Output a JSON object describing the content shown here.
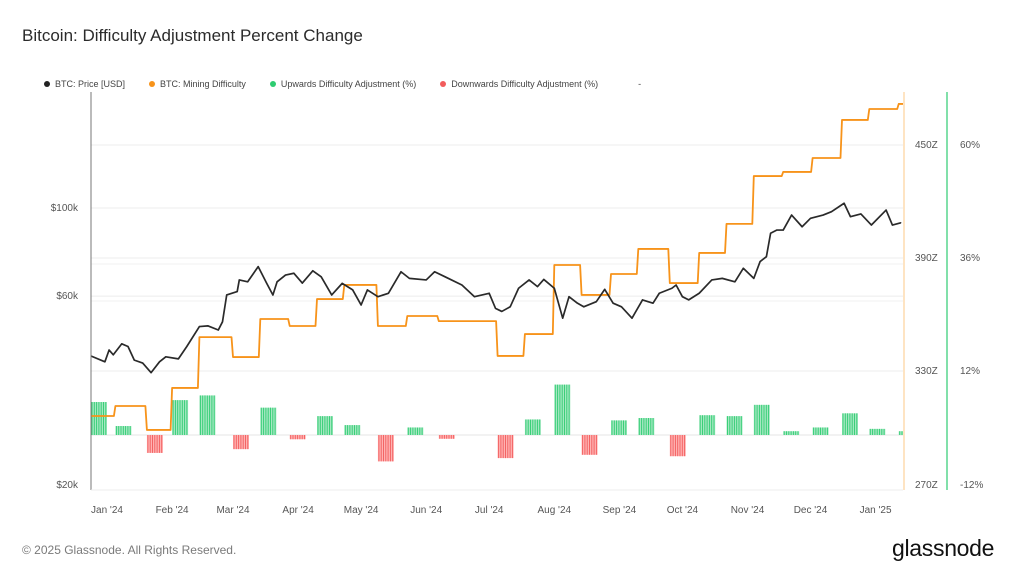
{
  "title": "Bitcoin: Difficulty Adjustment Percent Change",
  "footer": "© 2025 Glassnode. All Rights Reserved.",
  "logo": "glassnode",
  "legend": [
    {
      "label": "BTC: Price [USD]",
      "color": "#222222"
    },
    {
      "label": "BTC: Mining Difficulty",
      "color": "#f7931a"
    },
    {
      "label": "Upwards Difficulty Adjustment (%)",
      "color": "#2ecc71"
    },
    {
      "label": "Downwards Difficulty Adjustment (%)",
      "color": "#f25c5c"
    },
    {
      "label": "-",
      "color": ""
    }
  ],
  "chart_data": {
    "type": "line+bar",
    "title": "Bitcoin: Difficulty Adjustment Percent Change",
    "x_ticks": [
      "Jan '24",
      "Feb '24",
      "Mar '24",
      "Apr '24",
      "May '24",
      "Jun '24",
      "Jul '24",
      "Aug '24",
      "Sep '24",
      "Oct '24",
      "Nov '24",
      "Dec '24",
      "Jan '25"
    ],
    "price_axis": {
      "scale": "log",
      "ticks": [
        {
          "label": "$100k",
          "value": 100000
        },
        {
          "label": "$60k",
          "value": 60000
        },
        {
          "label": "$20k",
          "value": 20000
        }
      ]
    },
    "difficulty_axis": {
      "ticks": [
        {
          "label": "450Z",
          "value": 450
        },
        {
          "label": "390Z",
          "value": 390
        },
        {
          "label": "330Z",
          "value": 330
        },
        {
          "label": "270Z",
          "value": 270
        }
      ]
    },
    "percent_axis": {
      "ticks": [
        {
          "label": "60%",
          "value": 60
        },
        {
          "label": "36%",
          "value": 36
        },
        {
          "label": "12%",
          "value": 12
        },
        {
          "label": "-12%",
          "value": -12
        }
      ]
    },
    "grid": true,
    "legend_position": "top-left",
    "series": [
      {
        "name": "BTC: Price [USD]",
        "color": "#222222",
        "points": [
          [
            "2023-12-24",
            42400
          ],
          [
            "2023-12-31",
            41000
          ],
          [
            "2024-01-02",
            43900
          ],
          [
            "2024-01-04",
            42700
          ],
          [
            "2024-01-08",
            45500
          ],
          [
            "2024-01-11",
            44800
          ],
          [
            "2024-01-14",
            41400
          ],
          [
            "2024-01-18",
            40700
          ],
          [
            "2024-01-22",
            38500
          ],
          [
            "2024-01-26",
            41000
          ],
          [
            "2024-01-29",
            42200
          ],
          [
            "2024-02-04",
            41700
          ],
          [
            "2024-02-08",
            44800
          ],
          [
            "2024-02-14",
            50300
          ],
          [
            "2024-02-18",
            50500
          ],
          [
            "2024-02-23",
            49300
          ],
          [
            "2024-02-25",
            51700
          ],
          [
            "2024-02-27",
            60400
          ],
          [
            "2024-03-03",
            61600
          ],
          [
            "2024-03-04",
            65900
          ],
          [
            "2024-03-08",
            65200
          ],
          [
            "2024-03-13",
            71200
          ],
          [
            "2024-03-17",
            64700
          ],
          [
            "2024-03-20",
            60400
          ],
          [
            "2024-03-22",
            65200
          ],
          [
            "2024-03-26",
            67800
          ],
          [
            "2024-03-30",
            68500
          ],
          [
            "2024-04-03",
            64700
          ],
          [
            "2024-04-08",
            69500
          ],
          [
            "2024-04-12",
            67100
          ],
          [
            "2024-04-17",
            60400
          ],
          [
            "2024-04-22",
            64600
          ],
          [
            "2024-04-27",
            62200
          ],
          [
            "2024-05-01",
            57000
          ],
          [
            "2024-05-04",
            62200
          ],
          [
            "2024-05-09",
            59800
          ],
          [
            "2024-05-14",
            61000
          ],
          [
            "2024-05-20",
            69100
          ],
          [
            "2024-05-24",
            66500
          ],
          [
            "2024-06-01",
            65900
          ],
          [
            "2024-06-05",
            69100
          ],
          [
            "2024-06-10",
            67100
          ],
          [
            "2024-06-18",
            64000
          ],
          [
            "2024-06-24",
            59800
          ],
          [
            "2024-07-01",
            61000
          ],
          [
            "2024-07-04",
            55900
          ],
          [
            "2024-07-07",
            54900
          ],
          [
            "2024-07-11",
            56400
          ],
          [
            "2024-07-15",
            62800
          ],
          [
            "2024-07-20",
            65900
          ],
          [
            "2024-07-24",
            63400
          ],
          [
            "2024-07-27",
            66100
          ],
          [
            "2024-08-01",
            62800
          ],
          [
            "2024-08-05",
            52800
          ],
          [
            "2024-08-08",
            59800
          ],
          [
            "2024-08-12",
            57600
          ],
          [
            "2024-08-15",
            56400
          ],
          [
            "2024-08-21",
            58100
          ],
          [
            "2024-08-25",
            62400
          ],
          [
            "2024-08-29",
            57600
          ],
          [
            "2024-09-02",
            56400
          ],
          [
            "2024-09-07",
            52800
          ],
          [
            "2024-09-12",
            58700
          ],
          [
            "2024-09-17",
            57600
          ],
          [
            "2024-09-20",
            61000
          ],
          [
            "2024-09-26",
            62800
          ],
          [
            "2024-09-28",
            64000
          ],
          [
            "2024-10-01",
            59800
          ],
          [
            "2024-10-04",
            58700
          ],
          [
            "2024-10-09",
            61000
          ],
          [
            "2024-10-15",
            65900
          ],
          [
            "2024-10-20",
            66500
          ],
          [
            "2024-10-26",
            65200
          ],
          [
            "2024-10-30",
            70500
          ],
          [
            "2024-11-04",
            66500
          ],
          [
            "2024-11-07",
            73300
          ],
          [
            "2024-11-10",
            75400
          ],
          [
            "2024-11-12",
            86400
          ],
          [
            "2024-11-15",
            88000
          ],
          [
            "2024-11-18",
            88000
          ],
          [
            "2024-11-22",
            96000
          ],
          [
            "2024-11-27",
            89700
          ],
          [
            "2024-12-01",
            94200
          ],
          [
            "2024-12-07",
            96000
          ],
          [
            "2024-12-11",
            97900
          ],
          [
            "2024-12-17",
            102800
          ],
          [
            "2024-12-20",
            95100
          ],
          [
            "2024-12-25",
            96600
          ],
          [
            "2024-12-30",
            90600
          ],
          [
            "2025-01-06",
            98800
          ],
          [
            "2025-01-09",
            90600
          ],
          [
            "2025-01-13",
            91800
          ]
        ]
      },
      {
        "name": "BTC: Mining Difficulty",
        "color": "#f7931a",
        "unit": "Z"
      },
      {
        "name": "Upwards Difficulty Adjustment (%)",
        "color": "#2ecc71"
      },
      {
        "name": "Downwards Difficulty Adjustment (%)",
        "color": "#f25c5c"
      }
    ],
    "epochs": [
      {
        "date": "2023-12-24",
        "difficulty": 306.1,
        "change_pct": 7.0
      },
      {
        "date": "2024-01-05",
        "difficulty": 311.4,
        "change_pct": 1.9
      },
      {
        "date": "2024-01-20",
        "difficulty": 298.7,
        "change_pct": -3.8
      },
      {
        "date": "2024-02-01",
        "difficulty": 321.0,
        "change_pct": 7.4
      },
      {
        "date": "2024-02-14",
        "difficulty": 348.0,
        "change_pct": 8.4
      },
      {
        "date": "2024-03-01",
        "difficulty": 337.4,
        "change_pct": -3.0
      },
      {
        "date": "2024-03-14",
        "difficulty": 357.6,
        "change_pct": 5.8
      },
      {
        "date": "2024-03-28",
        "difficulty": 353.9,
        "change_pct": -0.9
      },
      {
        "date": "2024-04-10",
        "difficulty": 368.2,
        "change_pct": 4.0
      },
      {
        "date": "2024-04-23",
        "difficulty": 375.7,
        "change_pct": 2.1
      },
      {
        "date": "2024-05-09",
        "difficulty": 353.9,
        "change_pct": -5.6
      },
      {
        "date": "2024-05-23",
        "difficulty": 359.2,
        "change_pct": 1.6
      },
      {
        "date": "2024-06-07",
        "difficulty": 356.5,
        "change_pct": -0.8
      },
      {
        "date": "2024-06-20",
        "difficulty": 356.5,
        "change_pct": 0
      },
      {
        "date": "2024-07-05",
        "difficulty": 338.0,
        "change_pct": -4.9
      },
      {
        "date": "2024-07-18",
        "difficulty": 349.6,
        "change_pct": 3.3
      },
      {
        "date": "2024-08-01",
        "difficulty": 386.3,
        "change_pct": 10.7
      },
      {
        "date": "2024-08-14",
        "difficulty": 370.4,
        "change_pct": -4.2
      },
      {
        "date": "2024-08-28",
        "difficulty": 381.5,
        "change_pct": 3.1
      },
      {
        "date": "2024-09-10",
        "difficulty": 394.8,
        "change_pct": 3.6
      },
      {
        "date": "2024-09-25",
        "difficulty": 376.7,
        "change_pct": -4.5
      },
      {
        "date": "2024-10-09",
        "difficulty": 392.7,
        "change_pct": 4.2
      },
      {
        "date": "2024-10-22",
        "difficulty": 408.1,
        "change_pct": 4.0
      },
      {
        "date": "2024-11-04",
        "difficulty": 433.5,
        "change_pct": 6.4
      },
      {
        "date": "2024-11-18",
        "difficulty": 435.7,
        "change_pct": 0.8
      },
      {
        "date": "2024-12-02",
        "difficulty": 443.1,
        "change_pct": 1.6
      },
      {
        "date": "2024-12-16",
        "difficulty": 463.3,
        "change_pct": 4.6
      },
      {
        "date": "2024-12-29",
        "difficulty": 469.1,
        "change_pct": 1.3
      },
      {
        "date": "2025-01-12",
        "difficulty": 471.8,
        "change_pct": 0.8
      }
    ]
  }
}
